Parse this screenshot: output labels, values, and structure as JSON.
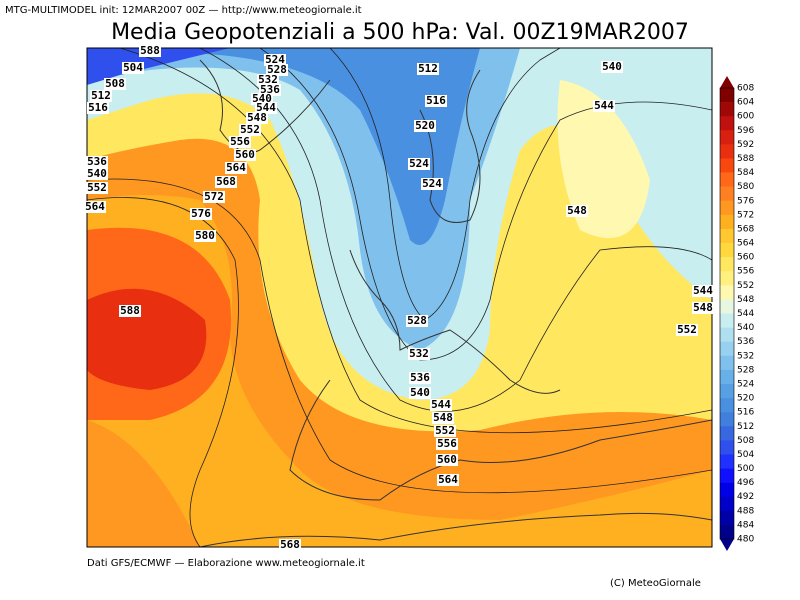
{
  "header": {
    "model_info": "MTG-MULTIMODEL init: 12MAR2007 00Z — http://www.meteogiornale.it",
    "title": "Media Geopotenziali a 500 hPa: Val. 00Z19MAR2007"
  },
  "contour_labels": [
    "588",
    "504",
    "508",
    "512",
    "516",
    "524",
    "528",
    "532",
    "536",
    "540",
    "544",
    "548",
    "552",
    "556",
    "560",
    "564",
    "568",
    "572",
    "576",
    "580",
    "588",
    "536",
    "540",
    "552",
    "564",
    "512",
    "516",
    "520",
    "524",
    "524",
    "540",
    "544",
    "548",
    "528",
    "532",
    "536",
    "540",
    "544",
    "548",
    "552",
    "556",
    "560",
    "564",
    "544",
    "548",
    "552",
    "568"
  ],
  "colorbar": {
    "labels": [
      "608",
      "604",
      "600",
      "596",
      "592",
      "588",
      "584",
      "580",
      "576",
      "572",
      "568",
      "564",
      "560",
      "556",
      "552",
      "548",
      "544",
      "540",
      "536",
      "532",
      "528",
      "524",
      "520",
      "516",
      "512",
      "508",
      "504",
      "500",
      "496",
      "492",
      "488",
      "484",
      "480"
    ],
    "colors": [
      "#800000",
      "#a00808",
      "#c01010",
      "#d82010",
      "#e83010",
      "#f84810",
      "#ff6818",
      "#ff8020",
      "#ff9820",
      "#ffb020",
      "#ffc830",
      "#ffd840",
      "#ffe860",
      "#fff080",
      "#fff8b0",
      "#e8f8e0",
      "#c8eef0",
      "#b0e0f0",
      "#98d0f0",
      "#80c0ec",
      "#68b0e8",
      "#58a0e4",
      "#4a90e0",
      "#4080dc",
      "#3868e0",
      "#3050ee",
      "#2030ff",
      "#1010ff",
      "#0000e6",
      "#0000c8",
      "#0000a8",
      "#00008b"
    ]
  },
  "footer": {
    "source": "Dati GFS/ECMWF — Elaborazione www.meteogiornale.it",
    "copyright": "(C) MeteoGiornale"
  }
}
